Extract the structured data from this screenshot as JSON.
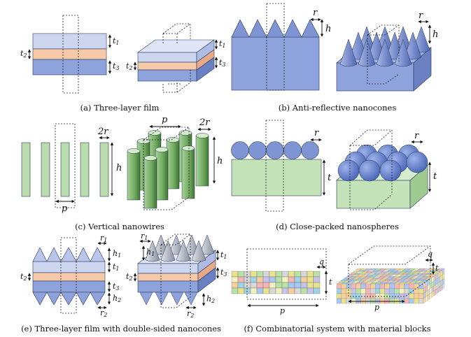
{
  "colors": {
    "top_layer": "#c9d2ee",
    "mid_layer": "#f6c9a8",
    "bottom_layer": "#8ea2dc",
    "cone_blue": "#7f95d3",
    "cone_grey": "#b9bdc9",
    "wire_green": "#b8dcab",
    "wire_dark": "#4f8a3f",
    "sphere_blue": "#6a86cf",
    "slab_green": "#c4e3b8"
  },
  "panels": {
    "a": {
      "caption": "(a) Three-layer film",
      "t1": "t",
      "t1_sub": "1",
      "t2": "t",
      "t2_sub": "2",
      "t3": "t",
      "t3_sub": "3"
    },
    "b": {
      "caption": "(b) Anti-reflective nanocones",
      "r": "r",
      "h": "h"
    },
    "c": {
      "caption": "(c) Vertical nanowires",
      "two_r": "2r",
      "h": "h",
      "p": "p"
    },
    "d": {
      "caption": "(d) Close-packed nanospheres",
      "r": "r",
      "t": "t"
    },
    "e": {
      "caption": "(e) Three-layer film with double-sided nanocones",
      "r": "r",
      "r1_sub": "1",
      "r2_sub": "2",
      "h": "h",
      "h1_sub": "1",
      "h2_sub": "2",
      "t": "t",
      "t1_sub": "1",
      "t2_sub": "2",
      "t3_sub": "3"
    },
    "f": {
      "caption": "(f) Combinatorial system with material blocks",
      "q": "q",
      "t": "t",
      "p": "p",
      "block_colors": [
        "#e9e38f",
        "#9fd3e8",
        "#f2b6b6",
        "#b9e2a6",
        "#c9c2ea",
        "#f6cf9c",
        "#d8d8d8",
        "#f4f1c0",
        "#a9c7f0"
      ]
    }
  }
}
